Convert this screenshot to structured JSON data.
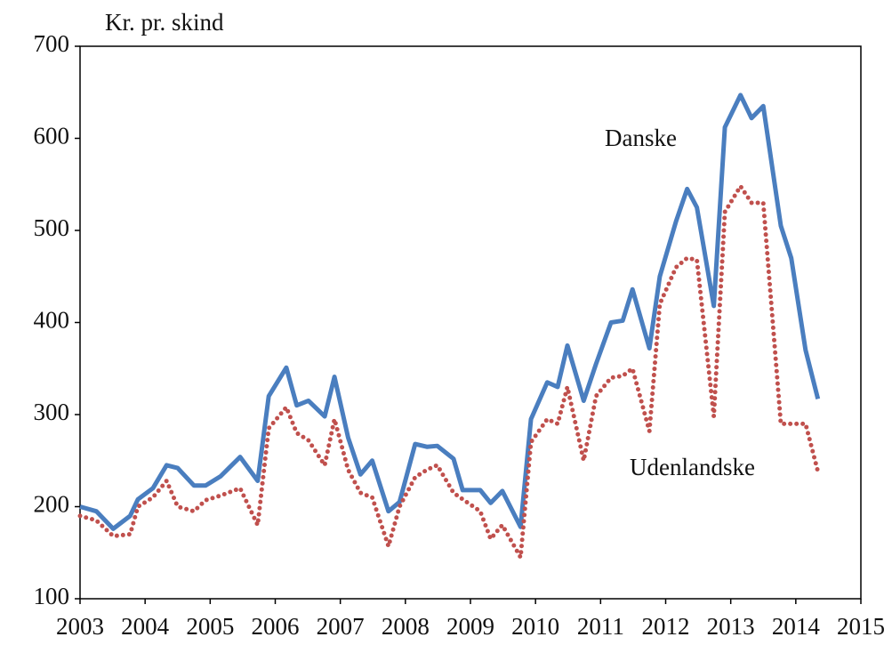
{
  "chart_data": {
    "type": "line",
    "y_label": "Kr. pr. skind",
    "annotations": [
      "Danske",
      "Udenlandske"
    ],
    "x": [
      2003.0,
      2003.25,
      2003.51,
      2003.77,
      2003.89,
      2004.12,
      2004.33,
      2004.5,
      2004.75,
      2004.93,
      2005.16,
      2005.46,
      2005.73,
      2005.9,
      2006.17,
      2006.33,
      2006.51,
      2006.76,
      2006.91,
      2007.12,
      2007.31,
      2007.49,
      2007.74,
      2007.91,
      2008.15,
      2008.33,
      2008.49,
      2008.74,
      2008.88,
      2009.15,
      2009.31,
      2009.49,
      2009.77,
      2009.93,
      2010.18,
      2010.34,
      2010.49,
      2010.74,
      2010.93,
      2011.16,
      2011.34,
      2011.49,
      2011.75,
      2011.91,
      2012.16,
      2012.33,
      2012.48,
      2012.74,
      2012.91,
      2013.15,
      2013.32,
      2013.5,
      2013.77,
      2013.93,
      2014.15,
      2014.34
    ],
    "series": [
      {
        "name": "Danske",
        "color": "#4a7ebf",
        "style": "solid",
        "values": [
          200,
          195,
          176,
          190,
          208,
          220,
          245,
          242,
          223,
          223,
          233,
          254,
          228,
          320,
          351,
          310,
          315,
          298,
          341,
          275,
          235,
          250,
          195,
          205,
          268,
          265,
          266,
          252,
          218,
          218,
          204,
          217,
          178,
          295,
          335,
          330,
          375,
          315,
          355,
          400,
          402,
          436,
          372,
          450,
          510,
          545,
          525,
          418,
          612,
          647,
          622,
          635,
          505,
          470,
          370,
          317
        ]
      },
      {
        "name": "Udenlandske",
        "color": "#c0504d",
        "style": "dotted",
        "values": [
          190,
          185,
          168,
          170,
          200,
          210,
          228,
          200,
          195,
          207,
          212,
          220,
          180,
          285,
          308,
          280,
          272,
          245,
          295,
          240,
          215,
          210,
          157,
          200,
          232,
          240,
          245,
          215,
          208,
          195,
          165,
          180,
          145,
          270,
          295,
          290,
          330,
          250,
          320,
          340,
          342,
          350,
          282,
          420,
          460,
          470,
          468,
          298,
          520,
          548,
          530,
          530,
          290,
          290,
          290,
          238
        ]
      }
    ],
    "xlim": [
      2003,
      2015
    ],
    "xticks": [
      2003,
      2004,
      2005,
      2006,
      2007,
      2008,
      2009,
      2010,
      2011,
      2012,
      2013,
      2014,
      2015
    ],
    "ylim": [
      100,
      700
    ],
    "yticks": [
      100,
      200,
      300,
      400,
      500,
      600,
      700
    ],
    "grid": false
  }
}
